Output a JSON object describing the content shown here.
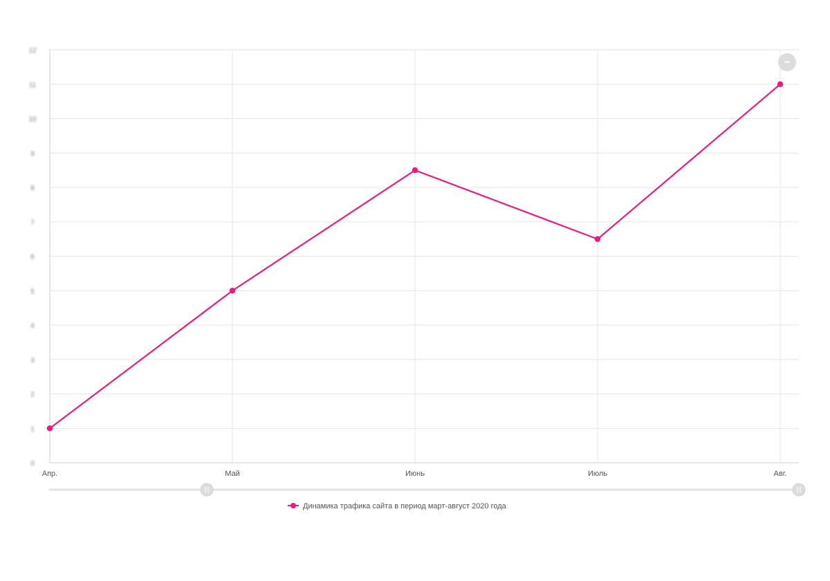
{
  "chart_data": {
    "type": "line",
    "categories": [
      "Апр.",
      "Май",
      "Июнь",
      "Июль",
      "Авг."
    ],
    "series": [
      {
        "name": "Динамика трафика сайта в период март-август 2020 года",
        "values": [
          1,
          5,
          8.5,
          6.5,
          11
        ]
      }
    ],
    "ylim": [
      0,
      12
    ],
    "y_ticks": [
      0,
      1,
      2,
      3,
      4,
      5,
      6,
      7,
      8,
      9,
      10,
      11,
      12
    ],
    "y_tick_labels_blurred": true,
    "grid": true,
    "legend_position": "bottom",
    "series_color": "#ee1a7f",
    "range_slider": true,
    "zoom_button_label": "−"
  }
}
